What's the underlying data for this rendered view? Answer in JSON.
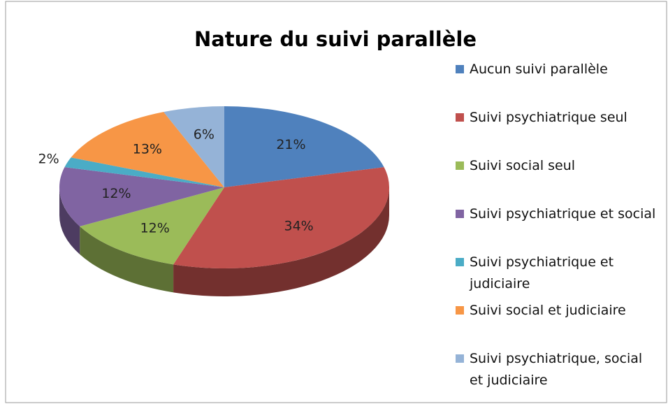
{
  "chart_data": {
    "type": "pie3d",
    "title": "Nature du suivi parallèle",
    "categories": [
      "Aucun suivi parallèle",
      "Suivi psychiatrique seul",
      "Suivi social seul",
      "Suivi psychiatrique et social",
      "Suivi psychiatrique et judiciaire",
      "Suivi social et judiciaire",
      "Suivi psychiatrique, social et judiciaire"
    ],
    "values": [
      21,
      34,
      12,
      12,
      2,
      13,
      6
    ],
    "value_labels": [
      "21%",
      "34%",
      "12%",
      "12%",
      "2%",
      "13%",
      "6%"
    ],
    "colors": [
      "#4f81bd",
      "#c0504d",
      "#9bbb59",
      "#8064a2",
      "#4bacc6",
      "#f79646",
      "#95b3d7"
    ],
    "legend": "right"
  }
}
